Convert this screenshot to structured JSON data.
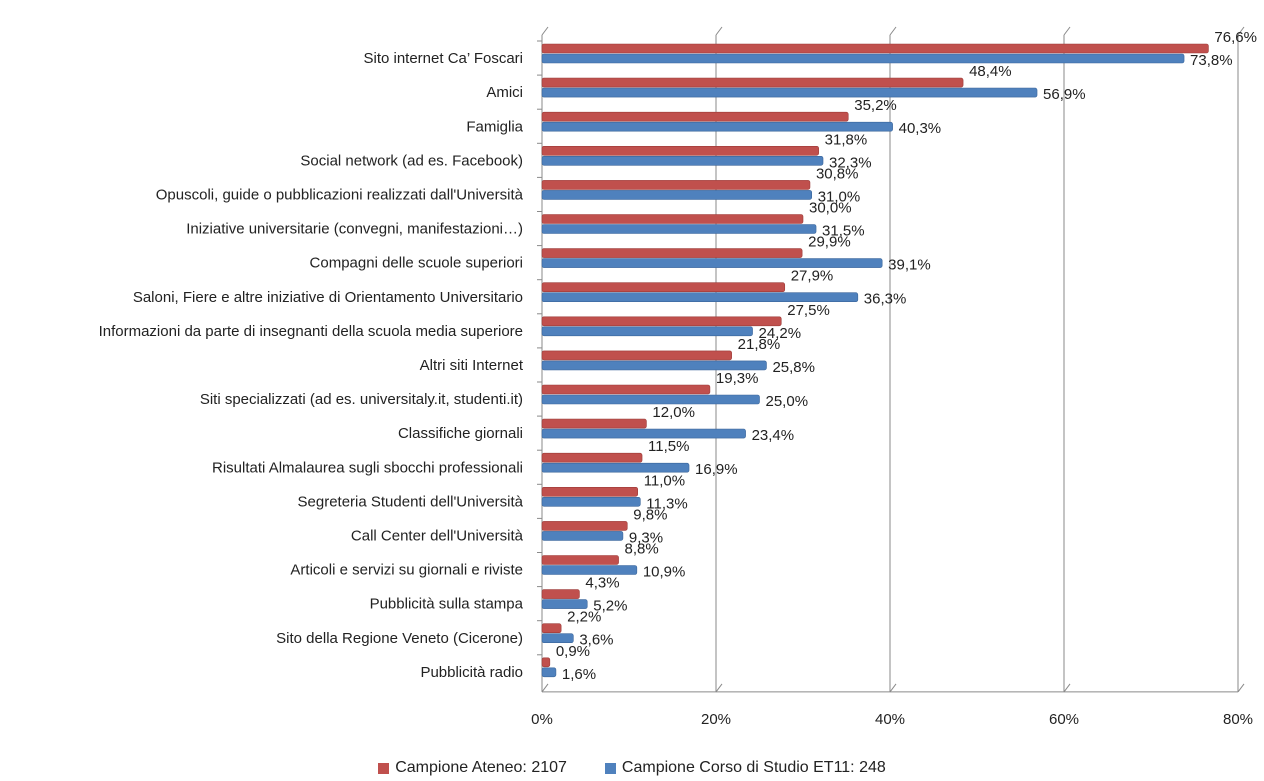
{
  "chart_data": {
    "type": "bar",
    "orientation": "horizontal",
    "categories": [
      "Sito internet Ca’ Foscari",
      "Amici",
      "Famiglia",
      "Social network (ad es. Facebook)",
      "Opuscoli, guide o pubblicazioni realizzati dall'Università",
      "Iniziative universitarie (convegni, manifestazioni…)",
      "Compagni delle scuole superiori",
      "Saloni, Fiere e altre iniziative di Orientamento Universitario",
      "Informazioni da parte di insegnanti della scuola media superiore",
      "Altri siti Internet",
      "Siti specializzati (ad es. universitaly.it, studenti.it)",
      "Classifiche giornali",
      "Risultati Almalaurea sugli sbocchi professionali",
      "Segreteria Studenti dell'Università",
      "Call Center dell'Università",
      "Articoli e servizi su giornali e riviste",
      "Pubblicità sulla stampa",
      "Sito della Regione Veneto (Cicerone)",
      "Pubblicità radio"
    ],
    "series": [
      {
        "name": "Campione Ateneo: 2107",
        "color": "#c0504d",
        "values": [
          76.6,
          48.4,
          35.2,
          31.8,
          30.8,
          30.0,
          29.9,
          27.9,
          27.5,
          21.8,
          19.3,
          12.0,
          11.5,
          11.0,
          9.8,
          8.8,
          4.3,
          2.2,
          0.9
        ],
        "labels": [
          "76,6%",
          "48,4%",
          "35,2%",
          "31,8%",
          "30,8%",
          "30,0%",
          "29,9%",
          "27,9%",
          "27,5%",
          "21,8%",
          "19,3%",
          "12,0%",
          "11,5%",
          "11,0%",
          "9,8%",
          "8,8%",
          "4,3%",
          "2,2%",
          "0,9%"
        ]
      },
      {
        "name": "Campione Corso di Studio ET11: 248",
        "color": "#4f81bd",
        "values": [
          73.8,
          56.9,
          40.3,
          32.3,
          31.0,
          31.5,
          39.1,
          36.3,
          24.2,
          25.8,
          25.0,
          23.4,
          16.9,
          11.3,
          9.3,
          10.9,
          5.2,
          3.6,
          1.6
        ],
        "labels": [
          "73,8%",
          "56,9%",
          "40,3%",
          "32,3%",
          "31,0%",
          "31,5%",
          "39,1%",
          "36,3%",
          "24,2%",
          "25,8%",
          "25,0%",
          "23,4%",
          "16,9%",
          "11,3%",
          "9,3%",
          "10,9%",
          "5,2%",
          "3,6%",
          "1,6%"
        ]
      }
    ],
    "xlim": [
      0,
      80
    ],
    "xticks": [
      0,
      20,
      40,
      60,
      80
    ],
    "xtick_labels": [
      "0%",
      "20%",
      "40%",
      "60%",
      "80%"
    ],
    "grid": true,
    "legend_position": "bottom"
  }
}
